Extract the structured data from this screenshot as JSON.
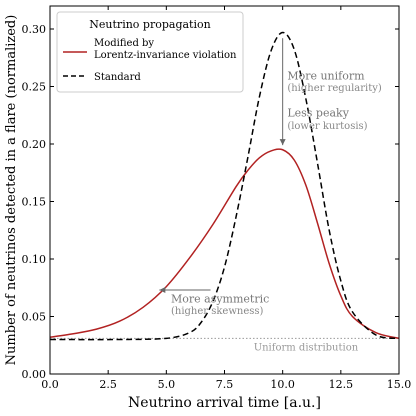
{
  "chart_data": {
    "type": "line",
    "xlabel": "Neutrino arrival time [a.u.]",
    "ylabel": "Number of neutrinos detected in a flare (normalized)",
    "xlim": [
      0.0,
      15.0
    ],
    "ylim": [
      0.0,
      0.32
    ],
    "xticks": [
      0.0,
      2.5,
      5.0,
      7.5,
      10.0,
      12.5,
      15.0
    ],
    "xtick_labels": [
      "0.0",
      "2.5",
      "5.0",
      "7.5",
      "10.0",
      "12.5",
      "15.0"
    ],
    "yticks": [
      0.0,
      0.05,
      0.1,
      0.15,
      0.2,
      0.25,
      0.3
    ],
    "ytick_labels": [
      "0.00",
      "0.05",
      "0.10",
      "0.15",
      "0.20",
      "0.25",
      "0.30"
    ],
    "grid": false,
    "legend": {
      "title": "Neutrino propagation",
      "position": "top-left",
      "entries": [
        {
          "label_line1": "Modified by",
          "label_line2": "Lorentz-invariance violation",
          "color": "#b22222",
          "style": "solid"
        },
        {
          "label_line1": "Standard",
          "label_line2": "",
          "color": "#000000",
          "style": "dashed"
        }
      ]
    },
    "series": [
      {
        "name": "Modified by Lorentz-invariance violation",
        "color": "#b22222",
        "x": [
          0,
          1,
          2,
          3,
          4,
          5,
          6,
          7,
          8,
          8.5,
          9,
          9.5,
          10,
          10.5,
          11,
          11.5,
          12,
          12.5,
          13,
          14,
          15
        ],
        "y": [
          0.032,
          0.035,
          0.039,
          0.046,
          0.058,
          0.076,
          0.101,
          0.13,
          0.163,
          0.177,
          0.188,
          0.194,
          0.195,
          0.186,
          0.164,
          0.131,
          0.096,
          0.068,
          0.05,
          0.036,
          0.031
        ]
      },
      {
        "name": "Standard",
        "color": "#000000",
        "x": [
          0,
          3,
          5,
          6,
          6.5,
          7,
          7.5,
          8,
          8.5,
          9,
          9.5,
          10,
          10.5,
          11,
          11.5,
          12,
          12.5,
          13,
          14,
          15
        ],
        "y": [
          0.03,
          0.03,
          0.031,
          0.036,
          0.045,
          0.063,
          0.093,
          0.137,
          0.188,
          0.241,
          0.281,
          0.297,
          0.282,
          0.239,
          0.183,
          0.125,
          0.081,
          0.054,
          0.034,
          0.031
        ]
      }
    ],
    "baseline": {
      "y": 0.031,
      "label": "Uniform distribution"
    },
    "annotations": [
      {
        "line1": "More uniform",
        "line2": "(higher regularity)",
        "x": 10.2,
        "y1": 0.256,
        "y2": 0.246
      },
      {
        "line1": "Less peaky",
        "line2": "(lower kurtosis)",
        "x": 10.2,
        "y1": 0.224,
        "y2": 0.213
      },
      {
        "line1": "More asymmetric",
        "line2": "(higher skewness)",
        "x": 5.2,
        "y1": 0.062,
        "y2": 0.052
      }
    ],
    "arrows": [
      {
        "from": [
          10.0,
          0.292
        ],
        "to": [
          10.0,
          0.199
        ]
      },
      {
        "from": [
          6.9,
          0.073
        ],
        "to": [
          4.7,
          0.073
        ]
      }
    ]
  }
}
